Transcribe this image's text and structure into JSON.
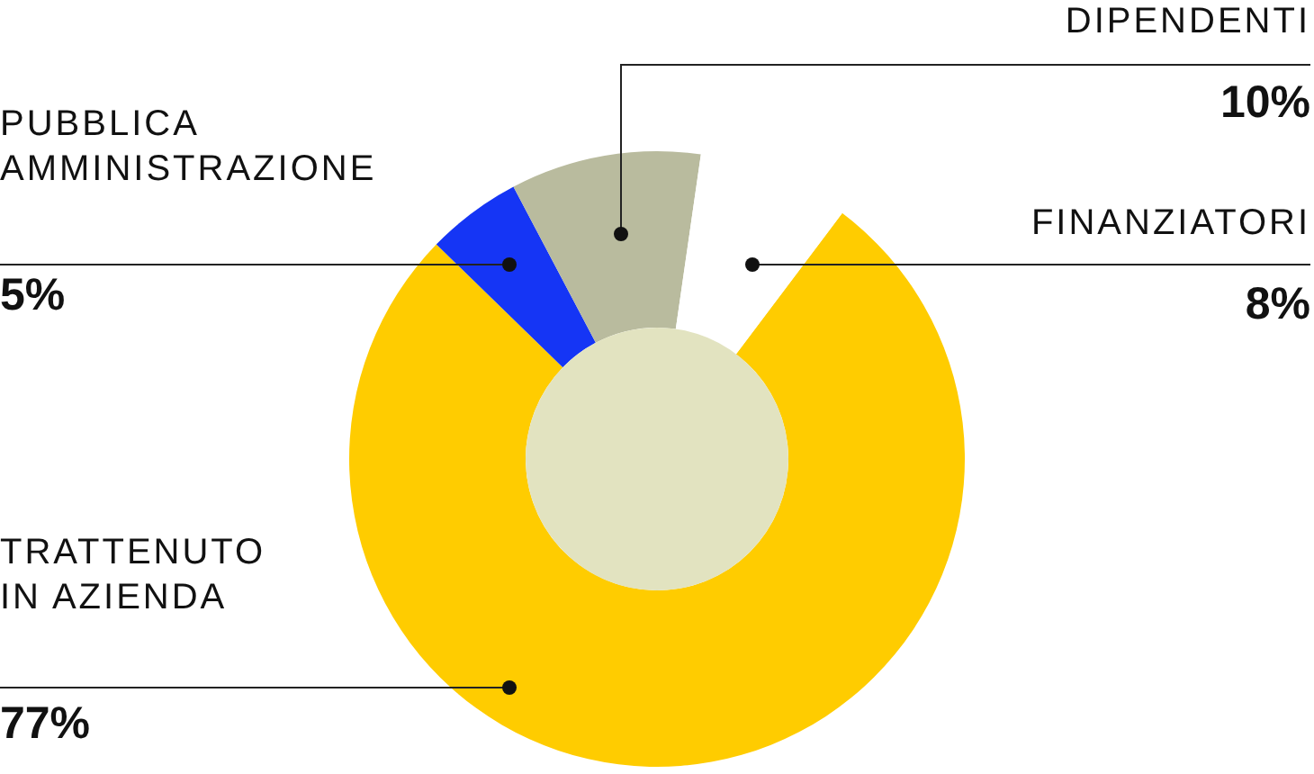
{
  "chart_data": {
    "type": "donut",
    "categories": [
      "TRATTENUTO\nIN AZIENDA",
      "PUBBLICA\nAMMINISTRAZIONE",
      "DIPENDENTI",
      "FINANZIATORI"
    ],
    "values": [
      77,
      5,
      10,
      8
    ],
    "value_labels": [
      "77%",
      "5%",
      "10%",
      "8%"
    ],
    "colors": [
      "#ffcc00",
      "#1535f5",
      "#b9bb9e",
      "#ffffff"
    ]
  }
}
